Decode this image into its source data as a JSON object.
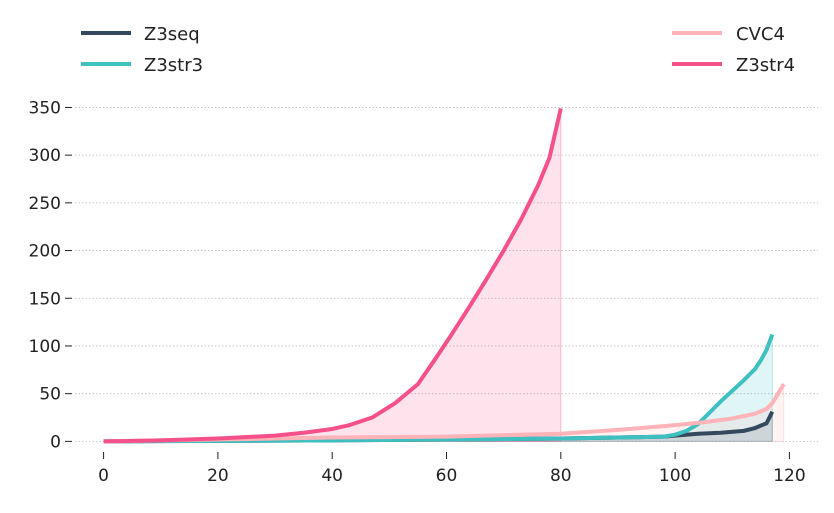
{
  "chart_data": {
    "type": "line",
    "title": "",
    "xlabel": "",
    "ylabel": "",
    "xlim": [
      -5,
      125
    ],
    "ylim": [
      -8,
      362
    ],
    "xticks": [
      0,
      20,
      40,
      60,
      80,
      100,
      120
    ],
    "yticks": [
      0,
      50,
      100,
      150,
      200,
      250,
      300,
      350
    ],
    "grid": "horizontal",
    "area_fill": true,
    "legend": [
      {
        "position": "top-left",
        "entries": [
          "Z3seq",
          "Z3str3"
        ]
      },
      {
        "position": "top-right",
        "entries": [
          "CVC4",
          "Z3str4"
        ]
      }
    ],
    "series": [
      {
        "name": "Z3seq",
        "color": "#34495e",
        "x": [
          0,
          20,
          40,
          60,
          80,
          90,
          98,
          100,
          104,
          108,
          112,
          114,
          116,
          117
        ],
        "y": [
          0,
          0.5,
          1,
          2,
          3,
          4,
          5,
          6,
          8,
          9,
          11,
          14,
          19,
          31
        ]
      },
      {
        "name": "Z3str3",
        "color": "#3ebfc0",
        "x": [
          0,
          20,
          40,
          60,
          80,
          90,
          98,
          100,
          102,
          104,
          106,
          108,
          110,
          112,
          114,
          115,
          116,
          117
        ],
        "y": [
          0,
          0.5,
          1,
          2,
          3,
          4,
          5,
          7,
          11,
          18,
          30,
          42,
          53,
          64,
          76,
          85,
          96,
          112
        ]
      },
      {
        "name": "CVC4",
        "color": "#fdb3b8",
        "x": [
          0,
          10,
          20,
          30,
          40,
          50,
          60,
          70,
          80,
          90,
          100,
          105,
          110,
          114,
          116,
          117,
          118,
          119
        ],
        "y": [
          0,
          1,
          2,
          3,
          4,
          4.5,
          5,
          6.5,
          8,
          12,
          17,
          20,
          24,
          29,
          34,
          40,
          50,
          60
        ]
      },
      {
        "name": "Z3str4",
        "color": "#f6508a",
        "x": [
          0,
          10,
          20,
          30,
          35,
          40,
          43,
          47,
          51,
          55,
          58,
          61,
          64,
          67,
          70,
          73,
          76,
          78,
          80
        ],
        "y": [
          0,
          1,
          3,
          6,
          9,
          13,
          17,
          25,
          40,
          60,
          86,
          113,
          141,
          170,
          200,
          232,
          268,
          297,
          349
        ]
      }
    ]
  }
}
